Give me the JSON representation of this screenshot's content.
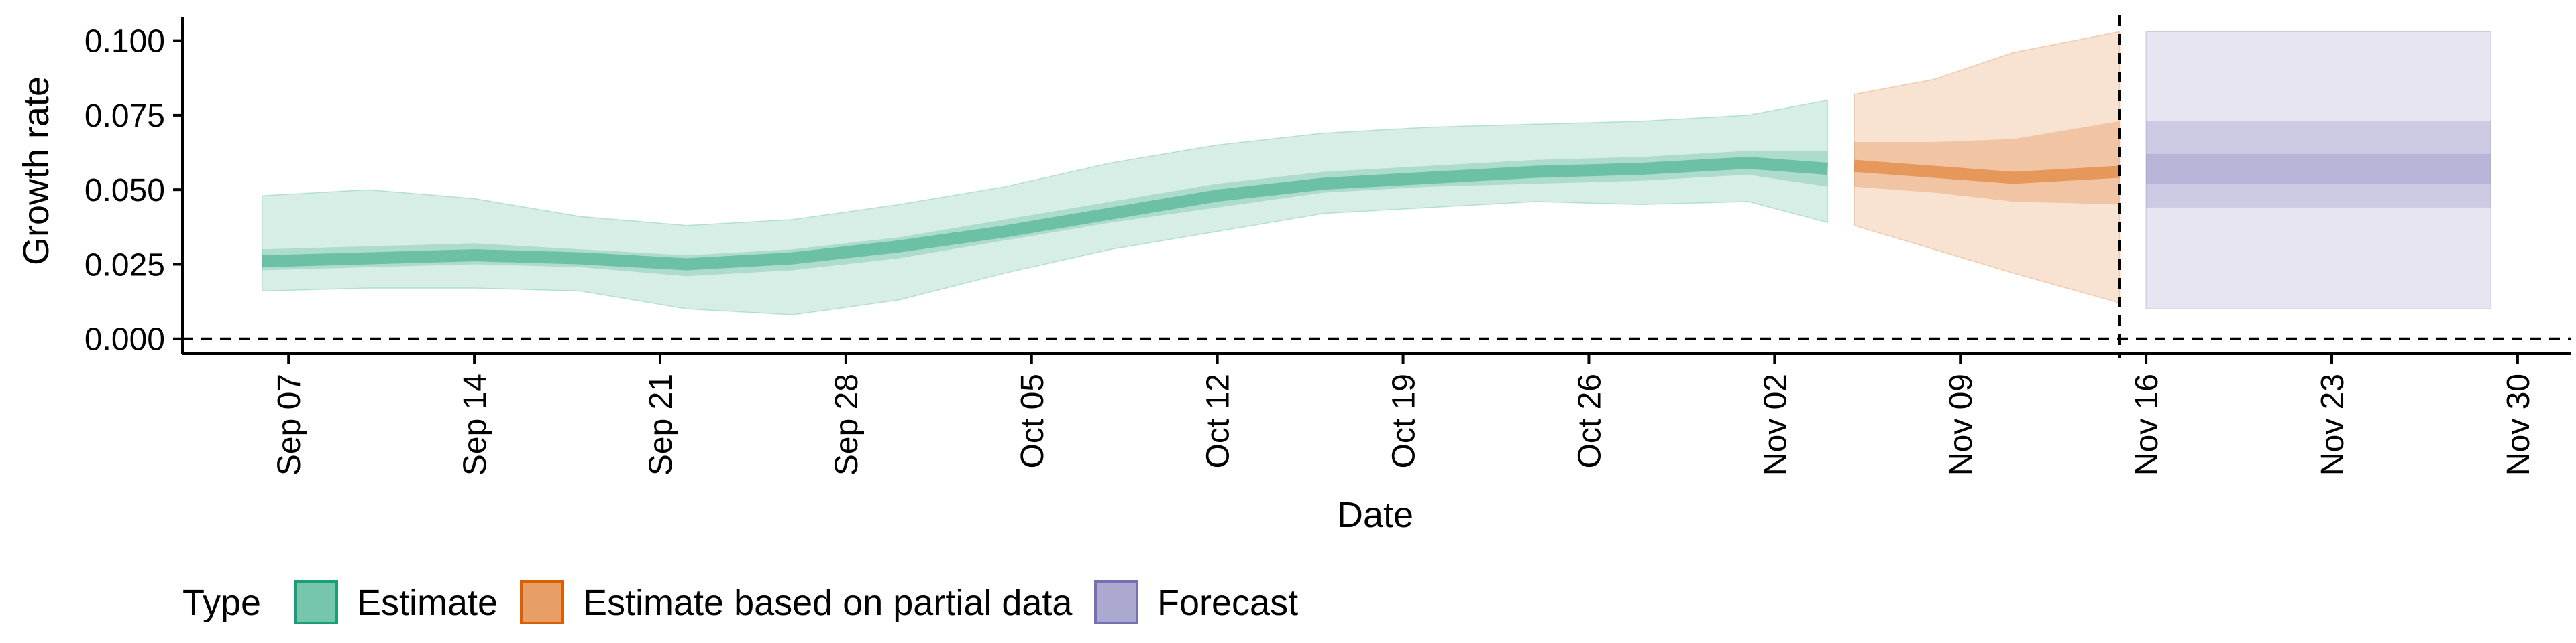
{
  "chart_data": {
    "type": "area",
    "xlabel": "Date",
    "ylabel": "Growth rate",
    "xlim": [
      "2020-09-03",
      "2020-12-02"
    ],
    "ylim": [
      -0.005,
      0.108
    ],
    "x_ticks": [
      "2020-09-07",
      "2020-09-14",
      "2020-09-21",
      "2020-09-28",
      "2020-10-05",
      "2020-10-12",
      "2020-10-19",
      "2020-10-26",
      "2020-11-02",
      "2020-11-09",
      "2020-11-16",
      "2020-11-23",
      "2020-11-30"
    ],
    "x_tick_labels": [
      "Sep 07",
      "Sep 14",
      "Sep 21",
      "Sep 28",
      "Oct 05",
      "Oct 12",
      "Oct 19",
      "Oct 26",
      "Nov 02",
      "Nov 09",
      "Nov 16",
      "Nov 23",
      "Nov 30"
    ],
    "y_ticks": [
      0,
      0.025,
      0.05,
      0.075,
      0.1
    ],
    "y_tick_labels": [
      "0.000",
      "0.025",
      "0.050",
      "0.075",
      "0.100"
    ],
    "reference_lines": {
      "y": 0,
      "x": "2020-11-15",
      "style": "dashed"
    },
    "grid": false,
    "legend": {
      "title": "Type",
      "position": "bottom-left",
      "items": [
        {
          "label": "Estimate",
          "color": "#1b9e77"
        },
        {
          "label": "Estimate based on partial data",
          "color": "#d95f02"
        },
        {
          "label": "Forecast",
          "color": "#7570b3"
        }
      ]
    },
    "series": [
      {
        "name": "Estimate",
        "color": "#1b9e77",
        "points": [
          {
            "date": "2020-09-06",
            "median": 0.026,
            "lower_50": 0.023,
            "upper_50": 0.03,
            "lower_90": 0.016,
            "upper_90": 0.048
          },
          {
            "date": "2020-09-10",
            "median": 0.027,
            "lower_50": 0.024,
            "upper_50": 0.031,
            "lower_90": 0.017,
            "upper_90": 0.05
          },
          {
            "date": "2020-09-14",
            "median": 0.028,
            "lower_50": 0.025,
            "upper_50": 0.032,
            "lower_90": 0.017,
            "upper_90": 0.047
          },
          {
            "date": "2020-09-18",
            "median": 0.027,
            "lower_50": 0.024,
            "upper_50": 0.03,
            "lower_90": 0.016,
            "upper_90": 0.041
          },
          {
            "date": "2020-09-22",
            "median": 0.025,
            "lower_50": 0.021,
            "upper_50": 0.028,
            "lower_90": 0.01,
            "upper_90": 0.038
          },
          {
            "date": "2020-09-26",
            "median": 0.027,
            "lower_50": 0.023,
            "upper_50": 0.03,
            "lower_90": 0.008,
            "upper_90": 0.04
          },
          {
            "date": "2020-09-30",
            "median": 0.031,
            "lower_50": 0.027,
            "upper_50": 0.034,
            "lower_90": 0.013,
            "upper_90": 0.045
          },
          {
            "date": "2020-10-04",
            "median": 0.036,
            "lower_50": 0.033,
            "upper_50": 0.04,
            "lower_90": 0.022,
            "upper_90": 0.051
          },
          {
            "date": "2020-10-08",
            "median": 0.042,
            "lower_50": 0.039,
            "upper_50": 0.046,
            "lower_90": 0.03,
            "upper_90": 0.059
          },
          {
            "date": "2020-10-12",
            "median": 0.048,
            "lower_50": 0.044,
            "upper_50": 0.052,
            "lower_90": 0.036,
            "upper_90": 0.065
          },
          {
            "date": "2020-10-16",
            "median": 0.052,
            "lower_50": 0.049,
            "upper_50": 0.056,
            "lower_90": 0.042,
            "upper_90": 0.069
          },
          {
            "date": "2020-10-20",
            "median": 0.054,
            "lower_50": 0.051,
            "upper_50": 0.058,
            "lower_90": 0.044,
            "upper_90": 0.071
          },
          {
            "date": "2020-10-24",
            "median": 0.056,
            "lower_50": 0.052,
            "upper_50": 0.06,
            "lower_90": 0.046,
            "upper_90": 0.072
          },
          {
            "date": "2020-10-28",
            "median": 0.057,
            "lower_50": 0.053,
            "upper_50": 0.061,
            "lower_90": 0.045,
            "upper_90": 0.073
          },
          {
            "date": "2020-11-01",
            "median": 0.059,
            "lower_50": 0.055,
            "upper_50": 0.063,
            "lower_90": 0.046,
            "upper_90": 0.075
          },
          {
            "date": "2020-11-04",
            "median": 0.057,
            "lower_50": 0.051,
            "upper_50": 0.063,
            "lower_90": 0.039,
            "upper_90": 0.08
          }
        ]
      },
      {
        "name": "Estimate based on partial data",
        "color": "#d95f02",
        "points": [
          {
            "date": "2020-11-05",
            "median": 0.058,
            "lower_50": 0.051,
            "upper_50": 0.066,
            "lower_90": 0.038,
            "upper_90": 0.082
          },
          {
            "date": "2020-11-08",
            "median": 0.056,
            "lower_50": 0.049,
            "upper_50": 0.066,
            "lower_90": 0.03,
            "upper_90": 0.087
          },
          {
            "date": "2020-11-11",
            "median": 0.054,
            "lower_50": 0.046,
            "upper_50": 0.067,
            "lower_90": 0.022,
            "upper_90": 0.096
          },
          {
            "date": "2020-11-15",
            "median": 0.056,
            "lower_50": 0.045,
            "upper_50": 0.073,
            "lower_90": 0.012,
            "upper_90": 0.103
          }
        ]
      },
      {
        "name": "Forecast",
        "color": "#7570b3",
        "points": [
          {
            "date": "2020-11-16",
            "median": 0.057,
            "lower_30": 0.052,
            "upper_30": 0.062,
            "lower_50": 0.044,
            "upper_50": 0.073,
            "lower_90": 0.01,
            "upper_90": 0.103
          },
          {
            "date": "2020-11-29",
            "median": 0.057,
            "lower_30": 0.052,
            "upper_30": 0.062,
            "lower_50": 0.044,
            "upper_50": 0.073,
            "lower_90": 0.01,
            "upper_90": 0.103
          }
        ]
      }
    ]
  }
}
